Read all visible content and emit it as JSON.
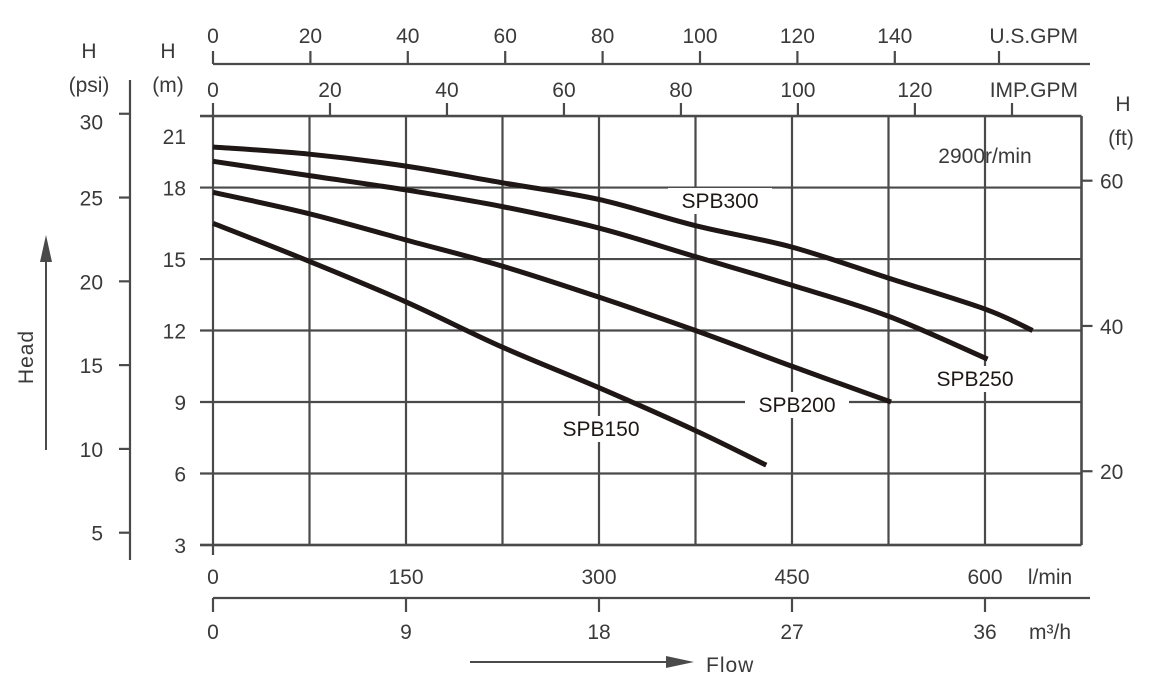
{
  "chart_data": {
    "type": "line",
    "xlabel": "Flow",
    "ylabel": "Head",
    "annotation": "2900r/min",
    "x_axis_primary": {
      "unit": "l/min",
      "range": [
        0,
        675
      ],
      "ticks": [
        0,
        150,
        300,
        450,
        600
      ],
      "grid_step": 75
    },
    "x_axis_m3h": {
      "unit": "m³/h",
      "ticks": [
        0,
        9,
        18,
        27,
        36
      ]
    },
    "x_axis_usgpm": {
      "unit": "U.S.GPM",
      "ticks": [
        0,
        20,
        40,
        60,
        80,
        100,
        120,
        140
      ]
    },
    "x_axis_impgpm": {
      "unit": "IMP.GPM",
      "ticks": [
        0,
        20,
        40,
        60,
        80,
        100,
        120
      ]
    },
    "y_axis_m": {
      "title": "H",
      "unit": "(m)",
      "range": [
        3,
        21
      ],
      "ticks": [
        3,
        6,
        9,
        12,
        15,
        18,
        21
      ]
    },
    "y_axis_psi": {
      "title": "H",
      "unit": "(psi)",
      "ticks": [
        5,
        10,
        15,
        20,
        25,
        30
      ]
    },
    "y_axis_ft": {
      "title": "H",
      "unit": "(ft)",
      "ticks": [
        20,
        40,
        60
      ]
    },
    "grid": true,
    "series": [
      {
        "name": "SPB300",
        "x": [
          0,
          75,
          150,
          225,
          300,
          375,
          450,
          525,
          600,
          637
        ],
        "y": [
          19.7,
          19.4,
          18.9,
          18.2,
          17.5,
          16.4,
          15.5,
          14.2,
          12.9,
          12.0
        ]
      },
      {
        "name": "SPB250",
        "x": [
          0,
          75,
          150,
          225,
          300,
          375,
          450,
          525,
          602
        ],
        "y": [
          19.1,
          18.5,
          17.9,
          17.2,
          16.3,
          15.1,
          13.9,
          12.6,
          10.8
        ]
      },
      {
        "name": "SPB200",
        "x": [
          0,
          75,
          150,
          225,
          300,
          375,
          450,
          527
        ],
        "y": [
          17.8,
          16.9,
          15.8,
          14.7,
          13.4,
          12.0,
          10.5,
          9.0
        ]
      },
      {
        "name": "SPB150",
        "x": [
          0,
          75,
          150,
          225,
          300,
          375,
          430
        ],
        "y": [
          16.5,
          14.9,
          13.2,
          11.3,
          9.6,
          7.8,
          6.35
        ]
      }
    ],
    "colors": {
      "curve": "#1e1716",
      "axis": "#4a4a4a",
      "text": "#3a3a3a"
    }
  }
}
